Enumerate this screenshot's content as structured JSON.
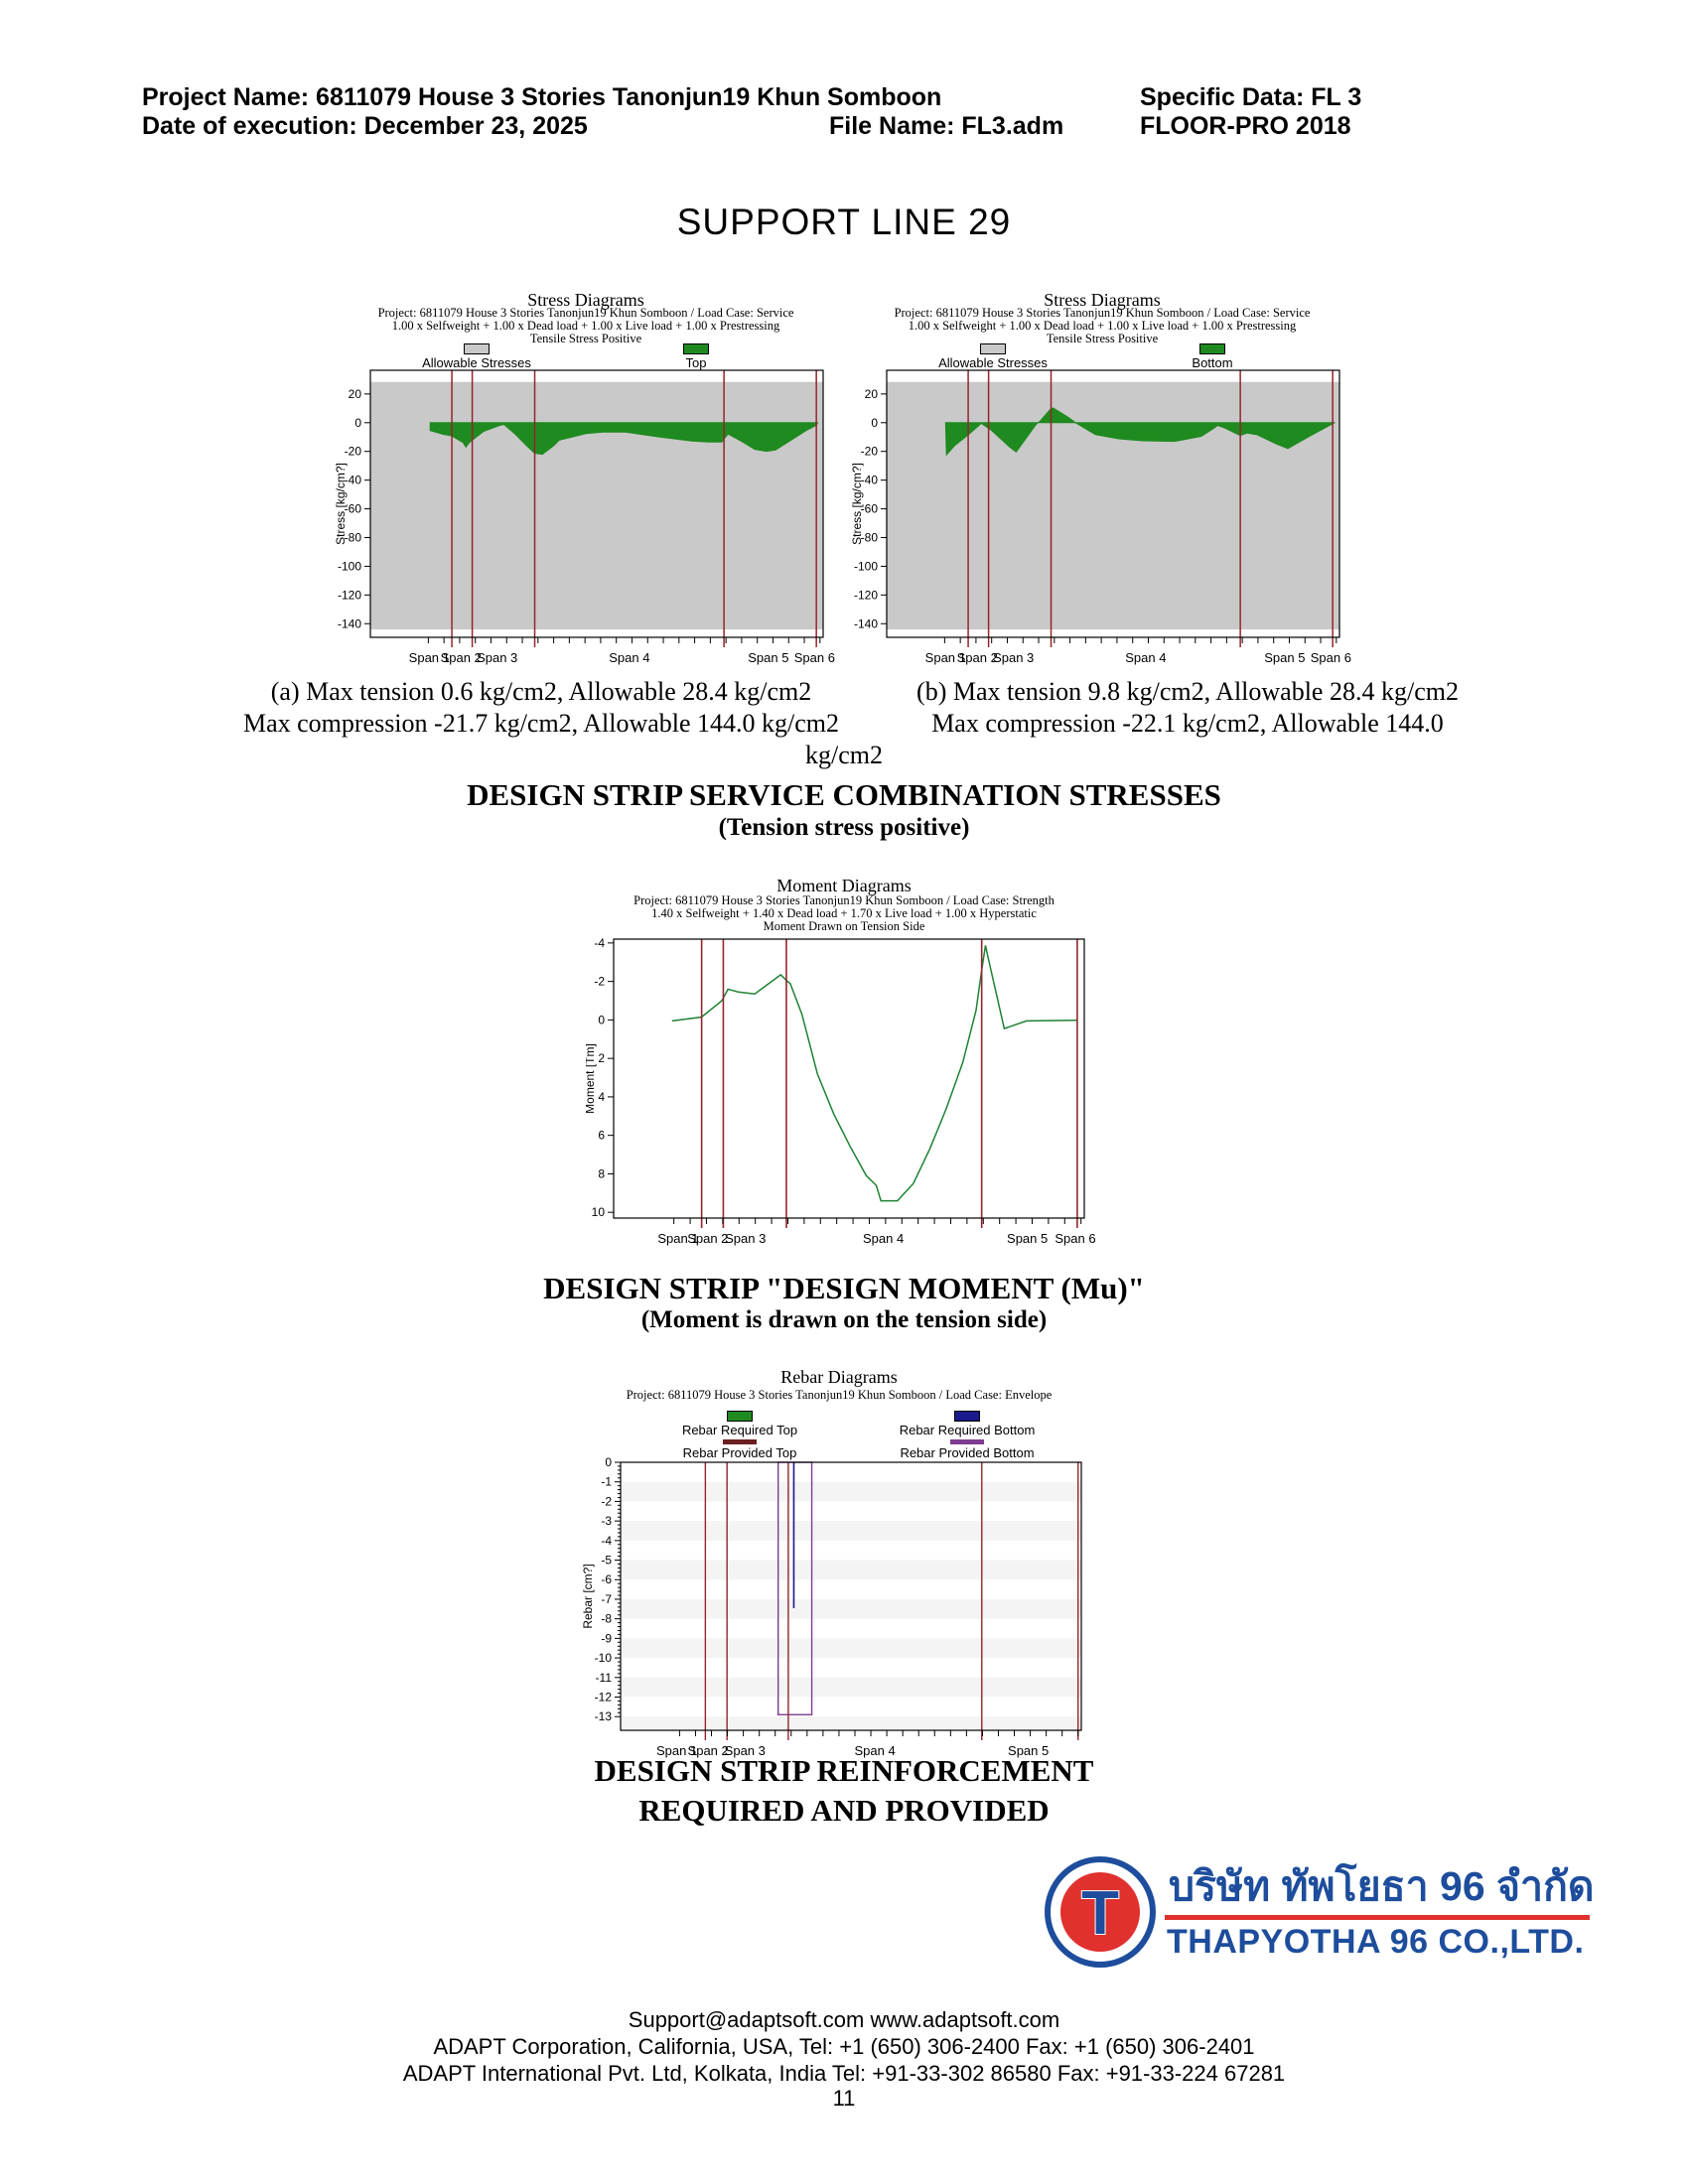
{
  "header": {
    "project": "Project Name: 6811079 House 3 Stories Tanonjun19 Khun Somboon",
    "specific_data": "Specific Data: FL 3",
    "date": "Date of execution: December 23, 2025",
    "file_name": "File Name: FL3.adm",
    "software": "FLOOR-PRO 2018"
  },
  "page_title": "SUPPORT LINE 29",
  "colors": {
    "green": "#1f8a1f",
    "moment_green": "#1e8233",
    "band_gray": "#c9c9c9",
    "span_line_red": "#952430",
    "navy": "#1a1a8c",
    "purple": "#7d3c8f",
    "dark_red": "#6b1f1f",
    "logo_blue": "#1d4d9c",
    "logo_red": "#e0312e",
    "stripe": "#f4f4f4"
  },
  "chart_data": [
    {
      "id": "stress_a",
      "type": "area",
      "title": "Stress Diagrams",
      "subtitle1": "Project: 6811079 House 3 Stories Tanonjun19 Khun Somboon / Load Case: Service",
      "subtitle2": "1.00 x Selfweight +  1.00 x Dead load +  1.00 x Live load +  1.00 x Prestressing",
      "subtitle3": "Tensile Stress Positive",
      "legend": [
        {
          "label": "Allowable Stresses",
          "color": "#c9c9c9"
        },
        {
          "label": "Top",
          "color": "#1f8a1f"
        }
      ],
      "ylabel": "Stress [kg/cm?]",
      "ylim": [
        36.5,
        -149.5
      ],
      "yticks": [
        20,
        0,
        -20,
        -40,
        -60,
        -80,
        -100,
        -120,
        -140
      ],
      "allowable_band": [
        28.4,
        -144
      ],
      "span_lines": [
        0.18,
        0.225,
        0.363,
        0.781,
        0.985
      ],
      "span_labels": [
        {
          "label": "Span 1",
          "x": 0.13
        },
        {
          "label": "Span 2",
          "x": 0.2
        },
        {
          "label": "Span 3",
          "x": 0.28
        },
        {
          "label": "Span 4",
          "x": 0.572
        },
        {
          "label": "Span 5",
          "x": 0.879
        },
        {
          "label": "Span 6",
          "x": 0.981
        }
      ],
      "series_name": "Top fiber stress",
      "series": [
        [
          0.132,
          0
        ],
        [
          0.132,
          -5.5
        ],
        [
          0.16,
          -8.0
        ],
        [
          0.18,
          -9.2
        ],
        [
          0.205,
          -14
        ],
        [
          0.211,
          -17
        ],
        [
          0.218,
          -14
        ],
        [
          0.25,
          -6
        ],
        [
          0.285,
          -2
        ],
        [
          0.295,
          -1.2
        ],
        [
          0.32,
          -8
        ],
        [
          0.345,
          -16
        ],
        [
          0.363,
          -21.4
        ],
        [
          0.38,
          -22
        ],
        [
          0.405,
          -16
        ],
        [
          0.417,
          -12.2
        ],
        [
          0.476,
          -7.6
        ],
        [
          0.513,
          -6.5
        ],
        [
          0.563,
          -6.5
        ],
        [
          0.637,
          -9.9
        ],
        [
          0.71,
          -12.7
        ],
        [
          0.747,
          -13.5
        ],
        [
          0.776,
          -13.5
        ],
        [
          0.79,
          -7.9
        ],
        [
          0.82,
          -13
        ],
        [
          0.849,
          -18.6
        ],
        [
          0.875,
          -19.9
        ],
        [
          0.895,
          -19
        ],
        [
          0.929,
          -12.2
        ],
        [
          0.965,
          -5
        ],
        [
          0.985,
          -1.8
        ],
        [
          0.988,
          0
        ]
      ]
    },
    {
      "id": "stress_b",
      "type": "area",
      "title": "Stress Diagrams",
      "subtitle1": "Project: 6811079 House 3 Stories Tanonjun19 Khun Somboon / Load Case: Service",
      "subtitle2": "1.00 x Selfweight +  1.00 x Dead load +  1.00 x Live load +  1.00 x Prestressing",
      "subtitle3": "Tensile Stress Positive",
      "legend": [
        {
          "label": "Allowable Stresses",
          "color": "#c9c9c9"
        },
        {
          "label": "Bottom",
          "color": "#1f8a1f"
        }
      ],
      "ylabel": "Stress [kg/cm?]",
      "ylim": [
        36.5,
        -149.5
      ],
      "yticks": [
        20,
        0,
        -20,
        -40,
        -60,
        -80,
        -100,
        -120,
        -140
      ],
      "allowable_band": [
        28.4,
        -144
      ],
      "span_lines": [
        0.18,
        0.225,
        0.363,
        0.781,
        0.985
      ],
      "span_labels": [
        {
          "label": "Span 1",
          "x": 0.13
        },
        {
          "label": "Span 2",
          "x": 0.2
        },
        {
          "label": "Span 3",
          "x": 0.28
        },
        {
          "label": "Span 4",
          "x": 0.572
        },
        {
          "label": "Span 5",
          "x": 0.879
        },
        {
          "label": "Span 6",
          "x": 0.981
        }
      ],
      "series_name": "Bottom fiber stress",
      "series": [
        [
          0.13,
          0
        ],
        [
          0.132,
          -22.4
        ],
        [
          0.15,
          -16
        ],
        [
          0.18,
          -8.5
        ],
        [
          0.205,
          -1.5
        ],
        [
          0.209,
          -0.5
        ],
        [
          0.231,
          -5.2
        ],
        [
          0.271,
          -16.8
        ],
        [
          0.286,
          -20.4
        ],
        [
          0.33,
          -1.2
        ],
        [
          0.34,
          1.5
        ],
        [
          0.363,
          9.9
        ],
        [
          0.368,
          10.2
        ],
        [
          0.403,
          3.3
        ],
        [
          0.417,
          0
        ],
        [
          0.461,
          -8.3
        ],
        [
          0.512,
          -11.2
        ],
        [
          0.564,
          -12.6
        ],
        [
          0.636,
          -13
        ],
        [
          0.695,
          -9.5
        ],
        [
          0.724,
          -3.6
        ],
        [
          0.731,
          -1.9
        ],
        [
          0.745,
          -3.5
        ],
        [
          0.781,
          -8.9
        ],
        [
          0.796,
          -7.2
        ],
        [
          0.818,
          -8.4
        ],
        [
          0.861,
          -14.9
        ],
        [
          0.886,
          -18
        ],
        [
          0.933,
          -9.6
        ],
        [
          0.985,
          -0.7
        ],
        [
          0.99,
          0
        ]
      ]
    },
    {
      "id": "moment",
      "type": "line",
      "title": "Moment Diagrams",
      "subtitle1": "Project: 6811079 House 3 Stories Tanonjun19 Khun Somboon / Load Case: Strength",
      "subtitle2": "1.40 x Selfweight +  1.40 x Dead load +  1.70 x Live load +  1.00 x Hyperstatic",
      "subtitle3": "Moment Drawn on Tension Side",
      "legend": [],
      "ylabel": "Moment [Tm]",
      "ylim": [
        -4.2,
        10.3
      ],
      "yticks": [
        -4,
        -2,
        0,
        2,
        4,
        6,
        8,
        10
      ],
      "yminor_step": 0.5,
      "stripe_step": 2,
      "span_lines": [
        0.187,
        0.233,
        0.367,
        0.782,
        0.985
      ],
      "span_labels": [
        {
          "label": "Span 1",
          "x": 0.137
        },
        {
          "label": "Span 2",
          "x": 0.2
        },
        {
          "label": "Span 3",
          "x": 0.28
        },
        {
          "label": "Span 4",
          "x": 0.573
        },
        {
          "label": "Span 5",
          "x": 0.879
        },
        {
          "label": "Span 6",
          "x": 0.981
        }
      ],
      "series_name": "Design moment Mu",
      "series": [
        [
          0.124,
          0.05
        ],
        [
          0.187,
          -0.15
        ],
        [
          0.23,
          -1.0
        ],
        [
          0.243,
          -1.6
        ],
        [
          0.265,
          -1.45
        ],
        [
          0.3,
          -1.35
        ],
        [
          0.355,
          -2.35
        ],
        [
          0.367,
          -2.05
        ],
        [
          0.375,
          -1.9
        ],
        [
          0.4,
          -0.3
        ],
        [
          0.433,
          2.8
        ],
        [
          0.468,
          4.9
        ],
        [
          0.503,
          6.6
        ],
        [
          0.537,
          8.1
        ],
        [
          0.558,
          8.6
        ],
        [
          0.568,
          9.4
        ],
        [
          0.603,
          9.4
        ],
        [
          0.637,
          8.5
        ],
        [
          0.672,
          6.7
        ],
        [
          0.707,
          4.6
        ],
        [
          0.742,
          2.2
        ],
        [
          0.77,
          -0.5
        ],
        [
          0.782,
          -2.6
        ],
        [
          0.79,
          -3.87
        ],
        [
          0.796,
          -3.2
        ],
        [
          0.83,
          0.45
        ],
        [
          0.877,
          0.05
        ],
        [
          0.985,
          0.02
        ]
      ]
    },
    {
      "id": "rebar",
      "type": "rebar",
      "title": "Rebar Diagrams",
      "subtitle1": "Project: 6811079 House 3 Stories Tanonjun19 Khun Somboon / Load Case: Envelope",
      "legend": [
        {
          "label": "Rebar Required Top",
          "color": "#1f8a1f"
        },
        {
          "label": "Rebar Required Bottom",
          "color": "#1a1a8c"
        },
        {
          "label": "Rebar Provided Top",
          "color": "#6b1f1f"
        },
        {
          "label": "Rebar Provided Bottom",
          "color": "#7d3c8f"
        }
      ],
      "ylabel": "Rebar [cm?]",
      "ylim": [
        0,
        -13.7
      ],
      "yticks": [
        0,
        -1,
        -2,
        -3,
        -4,
        -5,
        -6,
        -7,
        -8,
        -9,
        -10,
        -11,
        -12,
        -13
      ],
      "yminor_step": 0.2,
      "stripe_step": 1,
      "span_lines": [
        0.184,
        0.231,
        0.364,
        0.784,
        0.993
      ],
      "span_labels": [
        {
          "label": "Span 1",
          "x": 0.122
        },
        {
          "label": "Span 2",
          "x": 0.19
        },
        {
          "label": "Span 3",
          "x": 0.27
        },
        {
          "label": "Span 4",
          "x": 0.552
        },
        {
          "label": "Span 5",
          "x": 0.885
        }
      ],
      "provided_bottom_rect": {
        "x1": 0.342,
        "x2": 0.415,
        "depth": -12.9
      },
      "required_bottom_line": {
        "x": 0.376,
        "depth": -7.45
      }
    }
  ],
  "captions": {
    "a_line1": "(a) Max tension 0.6 kg/cm2, Allowable 28.4 kg/cm2",
    "a_line2": "Max compression -21.7 kg/cm2, Allowable 144.0 kg/cm2",
    "b_line1": "(b) Max tension 9.8 kg/cm2, Allowable 28.4 kg/cm2",
    "b_line2": "Max compression -22.1 kg/cm2, Allowable 144.0",
    "overflow": "kg/cm2"
  },
  "headings": {
    "stress_main": "DESIGN STRIP SERVICE COMBINATION STRESSES",
    "stress_sub": "(Tension stress positive)",
    "moment_main": "DESIGN STRIP \"DESIGN MOMENT (Mu)\"",
    "moment_sub": "(Moment is drawn on the tension side)",
    "rebar_line1": "DESIGN STRIP REINFORCEMENT",
    "rebar_line2": "REQUIRED AND PROVIDED"
  },
  "logo": {
    "monogram": "T",
    "thai_name": "บริษัท ทัพโยธา 96 จำกัด",
    "english_name": "THAPYOTHA 96 CO.,LTD."
  },
  "footer": {
    "line1": "Support@adaptsoft.com     www.adaptsoft.com",
    "line2": "ADAPT Corporation, California, USA,   Tel: +1 (650) 306-2400     Fax: +1 (650) 306-2401",
    "line3": "ADAPT International Pvt. Ltd, Kolkata, India Tel: +91-33-302 86580     Fax: +91-33-224 67281",
    "page_number": "11"
  }
}
